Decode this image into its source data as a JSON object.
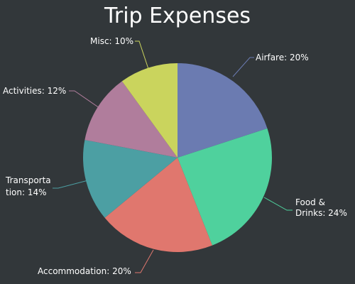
{
  "chart_data": {
    "type": "pie",
    "title": "Trip Expenses",
    "series": [
      {
        "name": "Airfare",
        "value": 20,
        "label": "Airfare: 20%",
        "color": "#6b7bb1"
      },
      {
        "name": "Food & Drinks",
        "value": 24,
        "label": "Food & Drinks: 24%",
        "color": "#4fd19d"
      },
      {
        "name": "Accommodation",
        "value": 20,
        "label": "Accommodation: 20%",
        "color": "#e0776e"
      },
      {
        "name": "Transportation",
        "value": 14,
        "label": "Transportation: 14%",
        "color": "#4c9fa3"
      },
      {
        "name": "Activities",
        "value": 12,
        "label": "Activities: 12%",
        "color": "#b07d9c"
      },
      {
        "name": "Misc",
        "value": 10,
        "label": "Misc: 10%",
        "color": "#cad45d"
      }
    ],
    "start_angle": "12 o'clock",
    "direction": "clockwise",
    "background": "#32373a"
  }
}
